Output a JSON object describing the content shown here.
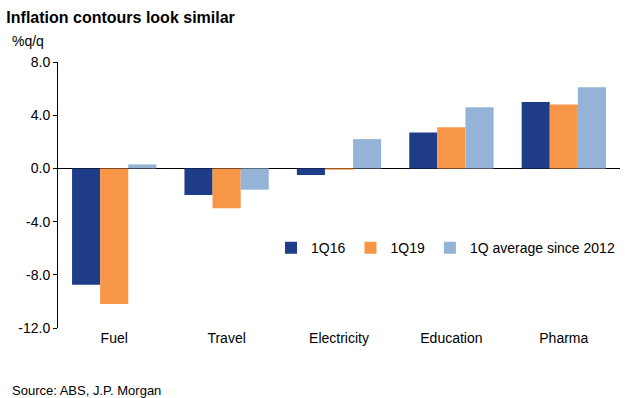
{
  "chart_data": {
    "type": "bar",
    "title": "Inflation contours look similar",
    "y_label": "%q/q",
    "source": "Source: ABS, J.P. Morgan",
    "categories": [
      "Fuel",
      "Travel",
      "Electricity",
      "Education",
      "Pharma"
    ],
    "series": [
      {
        "name": "1Q16",
        "color": "#1F3C88",
        "values": [
          -8.75,
          -2.0,
          -0.5,
          2.7,
          5.0
        ]
      },
      {
        "name": "1Q19",
        "color": "#F79646",
        "values": [
          -10.2,
          -3.0,
          -0.1,
          3.1,
          4.8
        ]
      },
      {
        "name": "1Q average since 2012",
        "color": "#95B3D7",
        "values": [
          0.3,
          -1.6,
          2.2,
          4.6,
          6.1
        ]
      }
    ],
    "ylim": [
      -12,
      8
    ],
    "yticks": [
      {
        "value": -12,
        "label": "-12.0"
      },
      {
        "value": -8,
        "label": "-8.0"
      },
      {
        "value": -4,
        "label": "-4.0"
      },
      {
        "value": 0,
        "label": "0.0"
      },
      {
        "value": 4,
        "label": "4.0"
      },
      {
        "value": 8,
        "label": "8.0"
      }
    ],
    "grid": false,
    "legend": "lower right"
  }
}
